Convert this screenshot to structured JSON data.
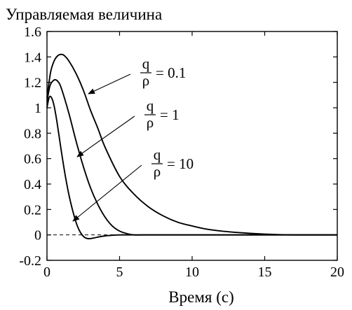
{
  "chart_data": {
    "type": "line",
    "title": "Управляемая величина",
    "xlabel": "Время (с)",
    "ylabel": "",
    "xlim": [
      0,
      20
    ],
    "ylim": [
      -0.2,
      1.6
    ],
    "x_ticks": [
      0,
      5,
      10,
      15,
      20
    ],
    "y_ticks": [
      -0.2,
      0,
      0.2,
      0.4,
      0.6,
      0.8,
      1,
      1.2,
      1.4,
      1.6
    ],
    "x_tick_labels": [
      "0",
      "5",
      "10",
      "15",
      "20"
    ],
    "y_tick_labels": [
      "-0.2",
      "0",
      "0.2",
      "0.4",
      "0.6",
      "0.8",
      "1",
      "1.2",
      "1.4",
      "1.6"
    ],
    "grid": false,
    "reference_line": {
      "y": 0,
      "style": "dashed"
    },
    "annotations": [
      {
        "numerator": "q",
        "denominator": "ρ",
        "value_text": "= 0.1",
        "series_index": 0
      },
      {
        "numerator": "q",
        "denominator": "ρ",
        "value_text": "= 1",
        "series_index": 1
      },
      {
        "numerator": "q",
        "denominator": "ρ",
        "value_text": "= 10",
        "series_index": 2
      }
    ],
    "series": [
      {
        "x": [
          0,
          0.25,
          0.5,
          0.75,
          1.0,
          1.2,
          1.5,
          2.0,
          2.5,
          3.0,
          3.5,
          4.0,
          5.0,
          6.0,
          7.0,
          8.0,
          9.0,
          10.0,
          11.0,
          12.0,
          13.0,
          14.0,
          15.0,
          16.0,
          17.0,
          18.0,
          19.0,
          20.0
        ],
        "y": [
          1.08,
          1.28,
          1.37,
          1.41,
          1.42,
          1.41,
          1.37,
          1.27,
          1.14,
          0.98,
          0.84,
          0.69,
          0.46,
          0.32,
          0.22,
          0.15,
          0.1,
          0.07,
          0.045,
          0.03,
          0.02,
          0.012,
          0.006,
          0.002,
          0.0,
          0.0,
          0.0,
          0.0
        ]
      },
      {
        "x": [
          0,
          0.2,
          0.4,
          0.6,
          0.8,
          1.0,
          1.5,
          2.0,
          2.5,
          3.0,
          3.5,
          4.0,
          4.5,
          5.0,
          5.5,
          6.0,
          7.0,
          8.0,
          10.0,
          15.0,
          20.0
        ],
        "y": [
          1.05,
          1.17,
          1.21,
          1.22,
          1.2,
          1.15,
          0.96,
          0.74,
          0.54,
          0.37,
          0.24,
          0.14,
          0.07,
          0.03,
          0.01,
          0.0,
          0.0,
          0.0,
          0.0,
          0.0,
          0.0
        ]
      },
      {
        "x": [
          0,
          0.1,
          0.2,
          0.35,
          0.5,
          0.7,
          1.0,
          1.3,
          1.6,
          2.0,
          2.3,
          2.6,
          2.9,
          3.2,
          3.6,
          4.0,
          4.5,
          5.0,
          6.0,
          10.0,
          20.0
        ],
        "y": [
          1.0,
          1.06,
          1.09,
          1.07,
          1.01,
          0.88,
          0.65,
          0.44,
          0.27,
          0.1,
          0.02,
          -0.02,
          -0.03,
          -0.025,
          -0.015,
          -0.008,
          -0.003,
          0.0,
          0.0,
          0.0,
          0.0
        ]
      }
    ]
  }
}
